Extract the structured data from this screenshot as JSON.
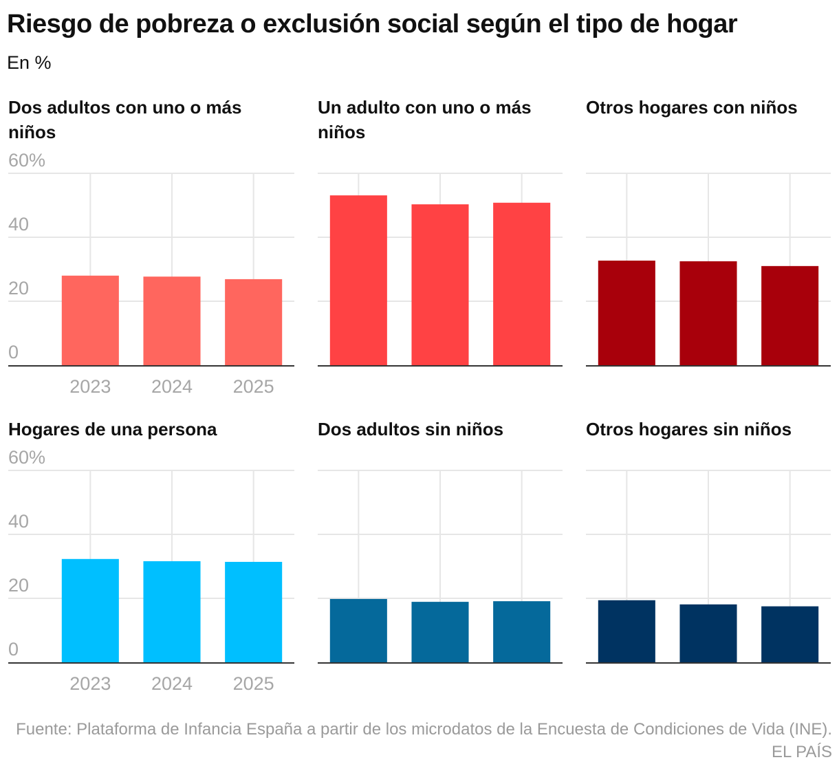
{
  "title": "Riesgo de pobreza o exclusión social según el tipo de hogar",
  "subtitle": "En %",
  "source": "Fuente: Plataforma de Infancia España a partir de los microdatos de la Encuesta de Condiciones de Vida (INE). EL PAÍS",
  "chart_data": [
    {
      "type": "bar",
      "title": "Dos adultos con uno o más niños",
      "categories": [
        "2023",
        "2024",
        "2025"
      ],
      "values": [
        28.0,
        27.7,
        26.9
      ],
      "color": "#ff665e",
      "ylim": [
        0,
        60
      ],
      "yticks": [
        "0",
        "20",
        "40",
        "60%"
      ],
      "grid": true
    },
    {
      "type": "bar",
      "title": "Un adulto con uno o más niños",
      "categories": [
        "2023",
        "2024",
        "2025"
      ],
      "values": [
        53.1,
        50.3,
        50.8
      ],
      "color": "#ff4244",
      "ylim": [
        0,
        60
      ],
      "grid": true
    },
    {
      "type": "bar",
      "title": "Otros hogares con niños",
      "categories": [
        "2023",
        "2024",
        "2025"
      ],
      "values": [
        32.7,
        32.5,
        31.0
      ],
      "color": "#a8000b",
      "ylim": [
        0,
        60
      ],
      "grid": true
    },
    {
      "type": "bar",
      "title": "Hogares de una persona",
      "categories": [
        "2023",
        "2024",
        "2025"
      ],
      "values": [
        32.3,
        31.6,
        31.4
      ],
      "color": "#00bfff",
      "ylim": [
        0,
        60
      ],
      "yticks": [
        "0",
        "20",
        "40",
        "60%"
      ],
      "grid": true
    },
    {
      "type": "bar",
      "title": "Dos adultos sin niños",
      "categories": [
        "2023",
        "2024",
        "2025"
      ],
      "values": [
        19.8,
        18.9,
        19.1
      ],
      "color": "#05699b",
      "ylim": [
        0,
        60
      ],
      "grid": true
    },
    {
      "type": "bar",
      "title": "Otros hogares sin niños",
      "categories": [
        "2023",
        "2024",
        "2025"
      ],
      "values": [
        19.4,
        18.1,
        17.5
      ],
      "color": "#003361",
      "ylim": [
        0,
        60
      ],
      "grid": true
    }
  ]
}
